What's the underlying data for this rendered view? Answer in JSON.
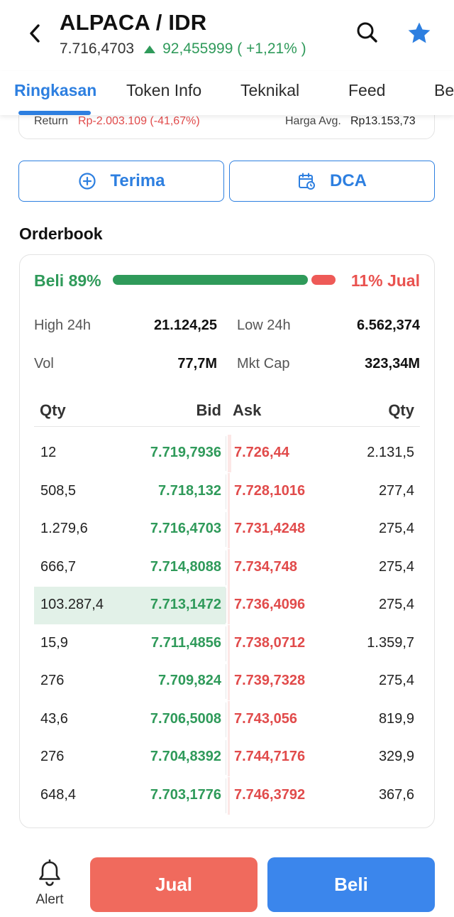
{
  "header": {
    "title": "ALPACA / IDR",
    "price": "7.716,4703",
    "change": "92,455999 ( +1,21% )",
    "icons": [
      "back-arrow-icon",
      "search-icon",
      "star-icon"
    ],
    "colors": {
      "accent": "#2d7fe0",
      "up": "#2f9a5a",
      "down": "#e14b4b"
    }
  },
  "tabs": [
    "Ringkasan",
    "Token Info",
    "Teknikal",
    "Feed",
    "Be"
  ],
  "return_info": {
    "return_label": "Return",
    "return_value": "Rp-2.003.109 (-41,67%)",
    "avg_label": "Harga Avg.",
    "avg_value": "Rp13.153,73"
  },
  "actions": {
    "terima": "Terima",
    "dca": "DCA"
  },
  "orderbook": {
    "title": "Orderbook",
    "beli_label": "Beli 89%",
    "jual_label": "11% Jual",
    "beli_fraction": 0.89,
    "stats": {
      "high_label": "High 24h",
      "high_value": "21.124,25",
      "low_label": "Low 24h",
      "low_value": "6.562,374",
      "vol_label": "Vol",
      "vol_value": "77,7M",
      "cap_label": "Mkt Cap",
      "cap_value": "323,34M"
    },
    "headers": {
      "qty_bid": "Qty",
      "bid": "Bid",
      "ask": "Ask",
      "qty_ask": "Qty"
    },
    "rows": [
      {
        "qty_bid": "12",
        "bid": "7.719,7936",
        "ask": "7.726,44",
        "qty_ask": "2.131,5",
        "bid_depth": 0.0,
        "ask_depth": 0.02
      },
      {
        "qty_bid": "508,5",
        "bid": "7.718,132",
        "ask": "7.728,1016",
        "qty_ask": "277,4",
        "bid_depth": 0.0,
        "ask_depth": 0.01
      },
      {
        "qty_bid": "1.279,6",
        "bid": "7.716,4703",
        "ask": "7.731,4248",
        "qty_ask": "275,4",
        "bid_depth": 0.0,
        "ask_depth": 0.01
      },
      {
        "qty_bid": "666,7",
        "bid": "7.714,8088",
        "ask": "7.734,748",
        "qty_ask": "275,4",
        "bid_depth": 0.0,
        "ask_depth": 0.01
      },
      {
        "qty_bid": "103.287,4",
        "bid": "7.713,1472",
        "ask": "7.736,4096",
        "qty_ask": "275,4",
        "bid_depth": 1.0,
        "ask_depth": 0.01
      },
      {
        "qty_bid": "15,9",
        "bid": "7.711,4856",
        "ask": "7.738,0712",
        "qty_ask": "1.359,7",
        "bid_depth": 0.0,
        "ask_depth": 0.01
      },
      {
        "qty_bid": "276",
        "bid": "7.709,824",
        "ask": "7.739,7328",
        "qty_ask": "275,4",
        "bid_depth": 0.0,
        "ask_depth": 0.01
      },
      {
        "qty_bid": "43,6",
        "bid": "7.706,5008",
        "ask": "7.743,056",
        "qty_ask": "819,9",
        "bid_depth": 0.0,
        "ask_depth": 0.01
      },
      {
        "qty_bid": "276",
        "bid": "7.704,8392",
        "ask": "7.744,7176",
        "qty_ask": "329,9",
        "bid_depth": 0.0,
        "ask_depth": 0.01
      },
      {
        "qty_bid": "648,4",
        "bid": "7.703,1776",
        "ask": "7.746,3792",
        "qty_ask": "367,6",
        "bid_depth": 0.0,
        "ask_depth": 0.01
      }
    ]
  },
  "bottom": {
    "alert": "Alert",
    "jual": "Jual",
    "beli": "Beli"
  }
}
